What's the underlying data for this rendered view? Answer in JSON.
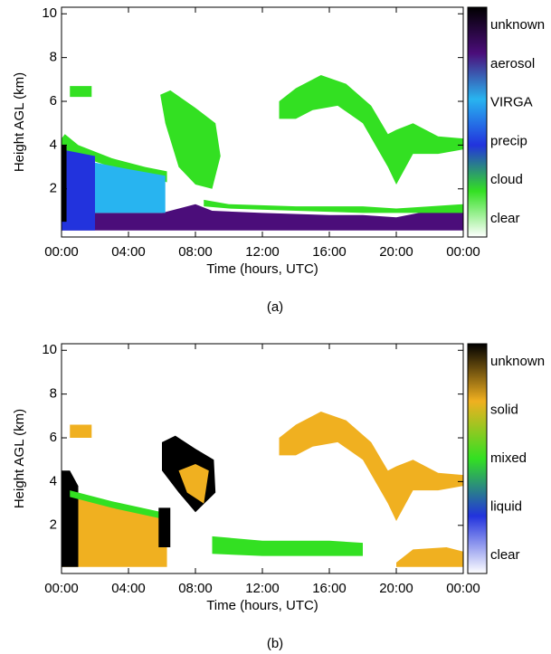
{
  "chart_data": [
    {
      "type": "area",
      "caption": "(a)",
      "xlabel": "Time (hours, UTC)",
      "ylabel": "Height AGL (km)",
      "xlim": [
        0,
        24
      ],
      "xticks": [
        {
          "value": 0,
          "label": "00:00"
        },
        {
          "value": 4,
          "label": "04:00"
        },
        {
          "value": 8,
          "label": "08:00"
        },
        {
          "value": 12,
          "label": "12:00"
        },
        {
          "value": 16,
          "label": "16:00"
        },
        {
          "value": 20,
          "label": "20:00"
        },
        {
          "value": 24,
          "label": "00:00"
        }
      ],
      "ylim": [
        -0.2,
        10.3
      ],
      "yticks": [
        2,
        4,
        6,
        8,
        10
      ],
      "colorbar": {
        "labels": [
          "unknown",
          "aerosol",
          "VIRGA",
          "precip",
          "cloud",
          "clear"
        ],
        "colors": [
          "#000000",
          "#4b0d7a",
          "#28b4f0",
          "#2233dd",
          "#33e022",
          "#ffffff"
        ]
      },
      "regions": [
        {
          "color": "#4b0d7a",
          "x": [
            0,
            3,
            6,
            8,
            9,
            12,
            16,
            18,
            20,
            22,
            24,
            24,
            0
          ],
          "y": [
            0.9,
            0.9,
            0.9,
            1.3,
            1,
            0.9,
            0.8,
            0.8,
            0.7,
            1,
            1,
            0.1,
            0.1
          ]
        },
        {
          "color": "#33e022",
          "x": [
            0,
            0.2,
            1,
            3,
            5,
            6.3,
            6.3,
            5,
            3,
            1,
            0
          ],
          "y": [
            4.3,
            4.5,
            4,
            3.4,
            3,
            2.8,
            2.3,
            2.6,
            3,
            3.5,
            3.5
          ]
        },
        {
          "color": "#28b4f0",
          "x": [
            0.5,
            2,
            4,
            6.2,
            6.2,
            4,
            2,
            0.5
          ],
          "y": [
            3.5,
            3.2,
            2.9,
            2.6,
            0.9,
            0.9,
            0.9,
            0.9
          ]
        },
        {
          "color": "#2233dd",
          "x": [
            0,
            2,
            2,
            0
          ],
          "y": [
            3.8,
            3.5,
            0.1,
            0.1
          ]
        },
        {
          "color": "#33e022",
          "x": [
            5.9,
            6.5,
            8,
            9.2,
            9.5,
            9,
            8,
            7,
            6.2
          ],
          "y": [
            6.3,
            6.5,
            5.7,
            5,
            3.5,
            2,
            2.2,
            3,
            5
          ]
        },
        {
          "color": "#33e022",
          "x": [
            8.5,
            10,
            14,
            18,
            20,
            22,
            24,
            24,
            20,
            18,
            14,
            10,
            8.5
          ],
          "y": [
            1.5,
            1.3,
            1.2,
            1.2,
            1.1,
            1.2,
            1.3,
            0.9,
            0.9,
            0.9,
            1,
            1.1,
            1.2
          ]
        },
        {
          "color": "#33e022",
          "x": [
            13,
            14,
            15.5,
            17,
            18.5,
            19.5,
            20,
            21,
            22.5,
            24,
            24,
            22.5,
            21,
            20,
            19.5,
            18,
            16.5,
            15,
            14,
            13
          ],
          "y": [
            6,
            6.6,
            7.2,
            6.8,
            5.8,
            4.5,
            4.7,
            5,
            4.4,
            4.3,
            3.8,
            3.6,
            3.6,
            2.2,
            3,
            5,
            5.8,
            5.6,
            5.2,
            5.2
          ]
        },
        {
          "color": "#33e022",
          "x": [
            0.5,
            1.8,
            1.8,
            0.5
          ],
          "y": [
            6.7,
            6.7,
            6.2,
            6.2
          ]
        },
        {
          "color": "#000000",
          "x": [
            0,
            0.3,
            0.3,
            0
          ],
          "y": [
            4,
            4,
            0.5,
            0.5
          ]
        }
      ]
    },
    {
      "type": "area",
      "caption": "(b)",
      "xlabel": "Time (hours, UTC)",
      "ylabel": "Height AGL (km)",
      "xlim": [
        0,
        24
      ],
      "xticks": [
        {
          "value": 0,
          "label": "00:00"
        },
        {
          "value": 4,
          "label": "04:00"
        },
        {
          "value": 8,
          "label": "08:00"
        },
        {
          "value": 12,
          "label": "12:00"
        },
        {
          "value": 16,
          "label": "16:00"
        },
        {
          "value": 20,
          "label": "20:00"
        },
        {
          "value": 24,
          "label": "00:00"
        }
      ],
      "ylim": [
        -0.2,
        10.3
      ],
      "yticks": [
        2,
        4,
        6,
        8,
        10
      ],
      "colorbar": {
        "labels": [
          "unknown",
          "solid",
          "mixed",
          "liquid",
          "clear"
        ],
        "colors": [
          "#000000",
          "#f0b020",
          "#33e022",
          "#2233dd",
          "#ffffff"
        ]
      },
      "regions": [
        {
          "color": "#f0b020",
          "x": [
            0,
            1,
            3,
            5,
            6.3,
            6.3,
            4,
            2,
            0
          ],
          "y": [
            3.5,
            3.2,
            2.9,
            2.6,
            2.4,
            0.1,
            0.1,
            0.1,
            0.1
          ]
        },
        {
          "color": "#000000",
          "x": [
            0,
            0.5,
            1,
            1,
            0
          ],
          "y": [
            4.5,
            4.5,
            3.8,
            0.1,
            0.1
          ]
        },
        {
          "color": "#33e022",
          "x": [
            0.5,
            3,
            6,
            6,
            3,
            0.5
          ],
          "y": [
            3.6,
            3.1,
            2.6,
            2.3,
            2.8,
            3.3
          ]
        },
        {
          "color": "#000000",
          "x": [
            6,
            6.8,
            8,
            9.1,
            9.2,
            8,
            7,
            6
          ],
          "y": [
            5.8,
            6.1,
            5.5,
            5,
            3.5,
            2.6,
            3.5,
            4.5
          ]
        },
        {
          "color": "#f0b020",
          "x": [
            7,
            8,
            8.8,
            8.5,
            7.5
          ],
          "y": [
            4.5,
            4.8,
            4.5,
            3,
            3.5
          ]
        },
        {
          "color": "#000000",
          "x": [
            5.8,
            6.5,
            6.5,
            5.8
          ],
          "y": [
            2.8,
            2.8,
            1,
            1
          ]
        },
        {
          "color": "#f0b020",
          "x": [
            13,
            14,
            15.5,
            17,
            18.5,
            19.5,
            20,
            21,
            22.5,
            24,
            24,
            22.5,
            21,
            20,
            19.5,
            18,
            16.5,
            15,
            14,
            13
          ],
          "y": [
            6,
            6.6,
            7.2,
            6.8,
            5.8,
            4.5,
            4.7,
            5,
            4.4,
            4.3,
            3.8,
            3.6,
            3.6,
            2.2,
            3,
            5,
            5.8,
            5.6,
            5.2,
            5.2
          ]
        },
        {
          "color": "#33e022",
          "x": [
            9,
            12,
            16,
            18,
            18,
            16,
            12,
            9
          ],
          "y": [
            1.5,
            1.3,
            1.3,
            1.2,
            0.6,
            0.6,
            0.6,
            0.7
          ]
        },
        {
          "color": "#f0b020",
          "x": [
            0.5,
            1.8,
            1.8,
            0.5
          ],
          "y": [
            6.6,
            6.6,
            6,
            6
          ]
        },
        {
          "color": "#f0b020",
          "x": [
            20,
            21,
            23,
            24,
            24,
            20
          ],
          "y": [
            0.3,
            0.9,
            1,
            0.8,
            0.1,
            0.1
          ]
        }
      ]
    }
  ]
}
